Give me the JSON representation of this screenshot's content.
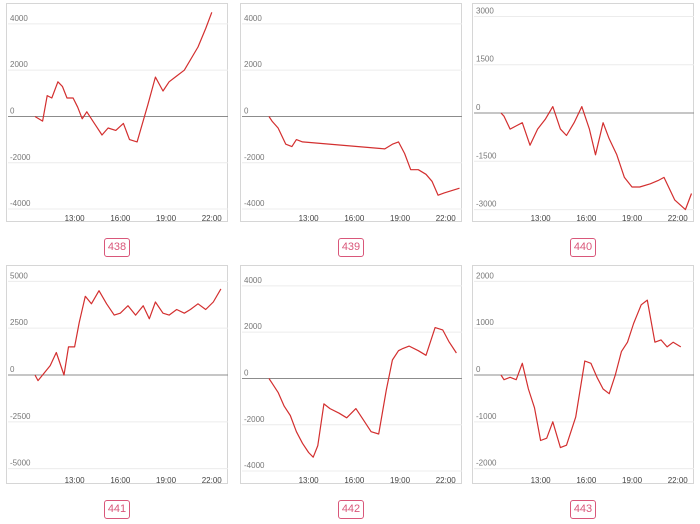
{
  "line_color": "#d32f2f",
  "badge_color": "#d9577a",
  "chart_data": [
    {
      "type": "line",
      "label": "438",
      "ylim": [
        -4300,
        4600
      ],
      "yticks": [
        -4000,
        -2000,
        0,
        2000,
        4000
      ],
      "xticks": [
        "13:00",
        "16:00",
        "19:00",
        "22:00"
      ],
      "x": [
        10.4,
        10.9,
        11.2,
        11.5,
        11.9,
        12.2,
        12.5,
        12.9,
        13.2,
        13.5,
        13.8,
        14.3,
        14.8,
        15.2,
        15.7,
        16.2,
        16.6,
        17.1,
        17.8,
        18.3,
        18.8,
        19.2,
        19.6,
        20.2,
        21.1,
        21.6,
        22.0
      ],
      "y": [
        0,
        -200,
        900,
        800,
        1500,
        1300,
        800,
        800,
        400,
        -100,
        200,
        -300,
        -800,
        -500,
        -600,
        -300,
        -1000,
        -1100,
        500,
        1700,
        1100,
        1500,
        1700,
        2000,
        3000,
        3800,
        4500
      ]
    },
    {
      "type": "line",
      "label": "439",
      "ylim": [
        -4300,
        4600
      ],
      "yticks": [
        -4000,
        -2000,
        0,
        2000,
        4000
      ],
      "xticks": [
        "13:00",
        "16:00",
        "19:00",
        "22:00"
      ],
      "x": [
        10.4,
        10.6,
        11.0,
        11.5,
        11.9,
        12.2,
        12.6,
        18.0,
        18.5,
        18.9,
        19.3,
        19.7,
        20.2,
        20.7,
        21.1,
        21.5,
        21.9,
        22.9
      ],
      "y": [
        0,
        -200,
        -500,
        -1200,
        -1300,
        -1000,
        -1100,
        -1400,
        -1200,
        -1100,
        -1600,
        -2300,
        -2300,
        -2500,
        -2800,
        -3400,
        -3300,
        -3100
      ]
    },
    {
      "type": "line",
      "label": "440",
      "ylim": [
        -3200,
        3200
      ],
      "yticks": [
        -3000,
        -1500,
        0,
        1500,
        3000
      ],
      "xticks": [
        "13:00",
        "16:00",
        "19:00",
        "22:00"
      ],
      "x": [
        10.4,
        10.6,
        11.0,
        11.4,
        11.8,
        12.3,
        12.8,
        13.3,
        13.8,
        14.3,
        14.7,
        15.2,
        15.7,
        16.2,
        16.6,
        17.1,
        17.5,
        18.0,
        18.5,
        19.0,
        19.5,
        20.2,
        20.7,
        21.1,
        21.8,
        22.5,
        22.9
      ],
      "y": [
        0,
        -100,
        -500,
        -400,
        -300,
        -1000,
        -500,
        -200,
        200,
        -500,
        -700,
        -300,
        200,
        -500,
        -1300,
        -300,
        -800,
        -1300,
        -2000,
        -2300,
        -2300,
        -2200,
        -2100,
        -2000,
        -2700,
        -3000,
        -2500
      ]
    },
    {
      "type": "line",
      "label": "441",
      "ylim": [
        -5500,
        5500
      ],
      "yticks": [
        -5000,
        -2500,
        0,
        2500,
        5000
      ],
      "xticks": [
        "13:00",
        "16:00",
        "19:00",
        "22:00"
      ],
      "x": [
        10.4,
        10.6,
        11.0,
        11.4,
        11.8,
        12.3,
        12.6,
        13.0,
        13.3,
        13.7,
        14.1,
        14.6,
        15.1,
        15.6,
        16.0,
        16.5,
        17.0,
        17.5,
        17.9,
        18.3,
        18.8,
        19.2,
        19.7,
        20.2,
        20.6,
        21.1,
        21.6,
        22.1,
        22.6
      ],
      "y": [
        0,
        -300,
        100,
        500,
        1200,
        0,
        1500,
        1500,
        2800,
        4200,
        3800,
        4500,
        3800,
        3200,
        3300,
        3700,
        3200,
        3700,
        3000,
        3900,
        3300,
        3200,
        3500,
        3300,
        3500,
        3800,
        3500,
        3900,
        4600
      ]
    },
    {
      "type": "line",
      "label": "442",
      "ylim": [
        -4300,
        4600
      ],
      "yticks": [
        -4000,
        -2000,
        0,
        2000,
        4000
      ],
      "xticks": [
        "13:00",
        "16:00",
        "19:00",
        "22:00"
      ],
      "x": [
        10.4,
        10.6,
        11.0,
        11.4,
        11.8,
        12.2,
        12.6,
        13.0,
        13.3,
        13.6,
        14.0,
        14.4,
        15.0,
        15.5,
        16.1,
        16.6,
        17.1,
        17.6,
        18.1,
        18.5,
        18.9,
        19.2,
        19.6,
        20.2,
        20.7,
        21.3,
        21.8,
        22.2,
        22.7
      ],
      "y": [
        0,
        -200,
        -600,
        -1200,
        -1600,
        -2300,
        -2800,
        -3200,
        -3400,
        -2900,
        -1100,
        -1300,
        -1500,
        -1700,
        -1300,
        -1800,
        -2300,
        -2400,
        -500,
        800,
        1200,
        1300,
        1400,
        1200,
        1000,
        2200,
        2100,
        1600,
        1100
      ]
    },
    {
      "type": "line",
      "label": "443",
      "ylim": [
        -2200,
        2200
      ],
      "yticks": [
        -2000,
        -1000,
        0,
        1000,
        2000
      ],
      "xticks": [
        "13:00",
        "16:00",
        "19:00",
        "22:00"
      ],
      "x": [
        10.4,
        10.6,
        11.0,
        11.4,
        11.8,
        12.2,
        12.6,
        13.0,
        13.4,
        13.8,
        14.3,
        14.7,
        15.3,
        15.9,
        16.3,
        16.7,
        17.1,
        17.5,
        17.9,
        18.3,
        18.7,
        19.1,
        19.6,
        20.0,
        20.5,
        20.9,
        21.3,
        21.7,
        22.2
      ],
      "y": [
        0,
        -100,
        -50,
        -100,
        250,
        -300,
        -700,
        -1400,
        -1350,
        -1000,
        -1550,
        -1500,
        -900,
        300,
        250,
        -50,
        -300,
        -400,
        0,
        500,
        700,
        1100,
        1500,
        1600,
        700,
        750,
        600,
        700,
        600
      ]
    }
  ]
}
